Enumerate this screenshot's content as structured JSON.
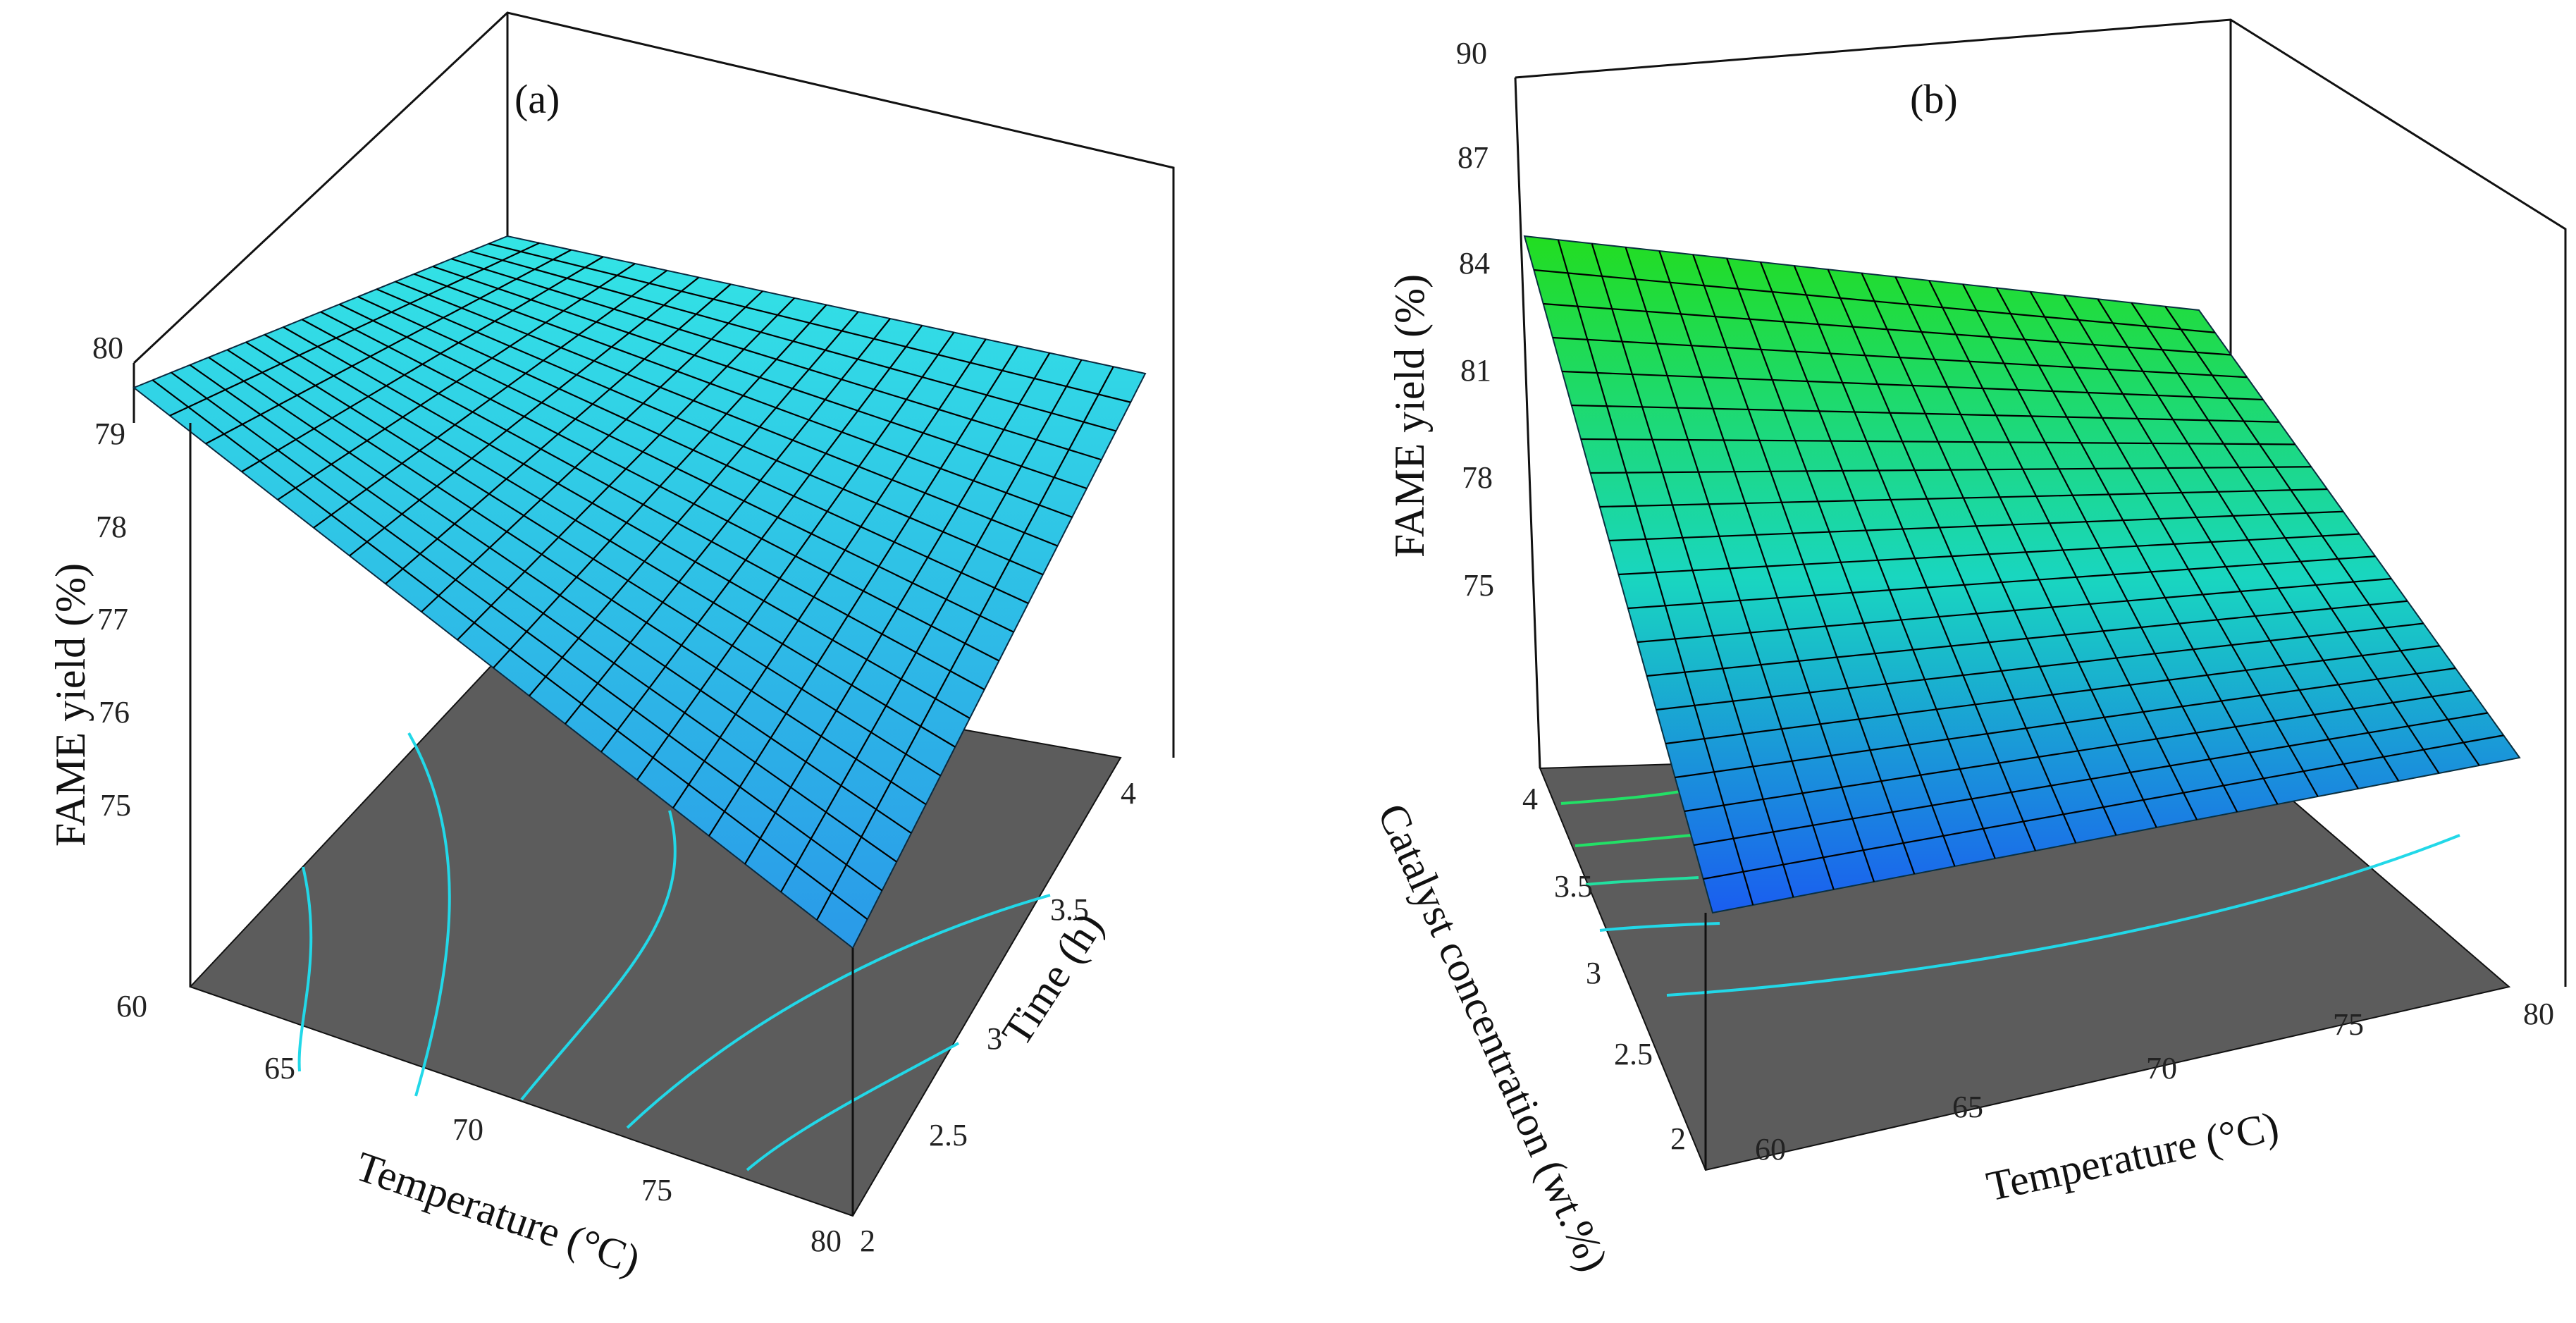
{
  "chart_data": [
    {
      "type": "surface",
      "panel_label": "(a)",
      "x": {
        "label": "Temperature (°C)",
        "ticks": [
          60,
          65,
          70,
          75,
          80
        ],
        "range": [
          60,
          80
        ]
      },
      "y": {
        "label": "Time (h)",
        "ticks": [
          2,
          2.5,
          3,
          3.5,
          4
        ],
        "range": [
          2,
          4
        ]
      },
      "z": {
        "label": "FAME yield (%)",
        "ticks": [
          75,
          76,
          77,
          78,
          79,
          80
        ],
        "range": [
          74,
          80
        ]
      },
      "surface_corners": {
        "t60_h2": 79.3,
        "t80_h2": 74.9,
        "t60_h4": 79.6,
        "t80_h4": 79.3
      },
      "surface_color": "#29c6e0",
      "floor_color": "#5c5c5c",
      "contour_color": "#22d8e8",
      "grid": "on"
    },
    {
      "type": "surface",
      "panel_label": "(b)",
      "x": {
        "label": "Temperature (°C)",
        "ticks": [
          60,
          65,
          70,
          75,
          80
        ],
        "range": [
          60,
          80
        ]
      },
      "y": {
        "label": "Catalyst concentration (wt.%)",
        "ticks": [
          2,
          2.5,
          3,
          3.5,
          4
        ],
        "range": [
          2,
          4
        ]
      },
      "z": {
        "label": "FAME yield (%)",
        "ticks": [
          75,
          78,
          81,
          84,
          87,
          90
        ],
        "range": [
          72,
          90
        ]
      },
      "surface_corners": {
        "t60_c4": 84.9,
        "t80_c4": 81.2,
        "t60_c2": 72.6,
        "t80_c2": 73.4
      },
      "surface_color_high": "#22dd22",
      "surface_color_low": "#1a5cf0",
      "floor_color": "#5c5c5c",
      "contour_color": "#22d8e8",
      "grid": "on"
    }
  ]
}
